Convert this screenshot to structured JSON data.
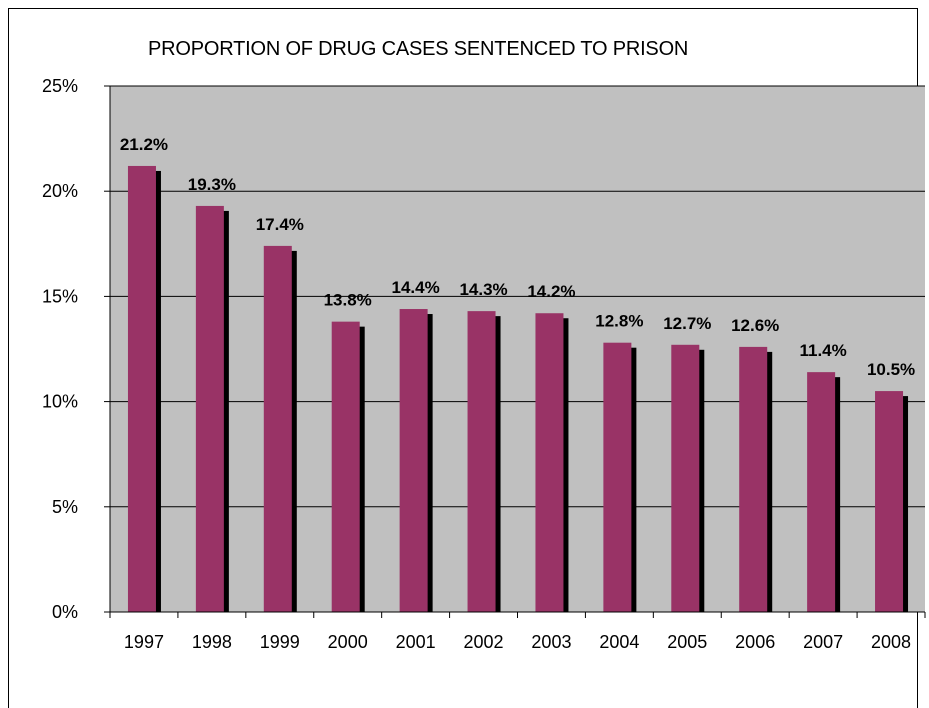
{
  "chart_data": {
    "type": "bar",
    "title": "PROPORTION OF DRUG CASES SENTENCED TO PRISON",
    "categories": [
      "1997",
      "1998",
      "1999",
      "2000",
      "2001",
      "2002",
      "2003",
      "2004",
      "2005",
      "2006",
      "2007",
      "2008"
    ],
    "values": [
      21.2,
      19.3,
      17.4,
      13.8,
      14.4,
      14.3,
      14.2,
      12.8,
      12.7,
      12.6,
      11.4,
      10.5
    ],
    "data_labels": [
      "21.2%",
      "19.3%",
      "17.4%",
      "13.8%",
      "14.4%",
      "14.3%",
      "14.2%",
      "12.8%",
      "12.7%",
      "12.6%",
      "11.4%",
      "10.5%"
    ],
    "ylim": [
      0,
      25
    ],
    "yticks": [
      0,
      5,
      10,
      15,
      20,
      25
    ],
    "ytick_labels": [
      "0%",
      "5%",
      "10%",
      "15%",
      "20%",
      "25%"
    ],
    "xlabel": "",
    "ylabel": "",
    "grid": true,
    "legend": "none",
    "colors": {
      "bar": "#993366",
      "bar_shadow": "#000000",
      "plot_background": "#c0c0c0",
      "gridline": "#000000"
    }
  }
}
